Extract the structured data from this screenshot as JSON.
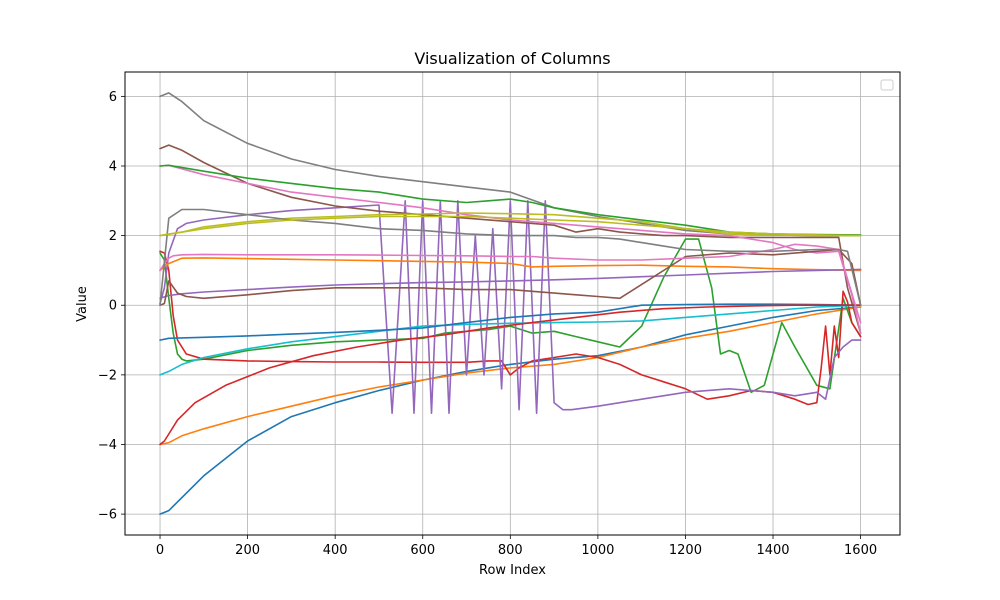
{
  "chart_data": {
    "type": "line",
    "title": "Visualization of Columns",
    "xlabel": "Row Index",
    "ylabel": "Value",
    "xlim": [
      -80,
      1690
    ],
    "ylim": [
      -6.6,
      6.7
    ],
    "xticks": [
      0,
      200,
      400,
      600,
      800,
      1000,
      1200,
      1400,
      1600
    ],
    "yticks": [
      -6,
      -4,
      -2,
      0,
      2,
      4,
      6
    ],
    "xtick_labels": [
      "0",
      "200",
      "400",
      "600",
      "800",
      "1000",
      "1200",
      "1400",
      "1600"
    ],
    "ytick_labels": [
      "−6",
      "−4",
      "−2",
      "0",
      "2",
      "4",
      "6"
    ],
    "grid": true,
    "legend": "top-right (empty)",
    "series": [
      {
        "color": "#1f77b4",
        "x": [
          0,
          20,
          100,
          200,
          300,
          400,
          500,
          600,
          700,
          800,
          900,
          1000,
          1100,
          1200,
          1300,
          1400,
          1500,
          1600
        ],
        "y": [
          -6.0,
          -5.9,
          -4.9,
          -3.9,
          -3.2,
          -2.8,
          -2.45,
          -2.15,
          -1.9,
          -1.7,
          -1.55,
          -1.45,
          -1.2,
          -0.85,
          -0.6,
          -0.35,
          -0.15,
          -0.05
        ]
      },
      {
        "color": "#ff7f0e",
        "x": [
          0,
          20,
          50,
          100,
          200,
          300,
          400,
          500,
          600,
          700,
          800,
          900,
          1000,
          1100,
          1200,
          1300,
          1400,
          1500,
          1600
        ],
        "y": [
          -4.0,
          -3.95,
          -3.75,
          -3.55,
          -3.2,
          -2.9,
          -2.6,
          -2.35,
          -2.15,
          -1.95,
          -1.8,
          -1.7,
          -1.5,
          -1.2,
          -0.95,
          -0.75,
          -0.5,
          -0.25,
          -0.05
        ]
      },
      {
        "color": "#2ca02c",
        "x": [
          0,
          10,
          20,
          30,
          40,
          50,
          60,
          100,
          200,
          300,
          400,
          500,
          600,
          650,
          700,
          750,
          800,
          850,
          900,
          950,
          1000,
          1050,
          1100,
          1150,
          1200,
          1230,
          1260,
          1280,
          1300,
          1320,
          1350,
          1380,
          1420,
          1450,
          1500,
          1530,
          1560,
          1580,
          1600
        ],
        "y": [
          1.5,
          1.3,
          0.2,
          -0.8,
          -1.4,
          -1.55,
          -1.6,
          -1.55,
          -1.3,
          -1.15,
          -1.05,
          -1.0,
          -0.95,
          -0.8,
          -0.75,
          -0.7,
          -0.6,
          -0.8,
          -0.75,
          -0.9,
          -1.05,
          -1.2,
          -0.6,
          0.8,
          1.9,
          1.9,
          0.5,
          -1.4,
          -1.3,
          -1.4,
          -2.5,
          -2.3,
          -0.5,
          -1.2,
          -2.3,
          -2.4,
          0.2,
          -0.5,
          -0.9
        ]
      },
      {
        "color": "#d62728",
        "x": [
          0,
          10,
          20,
          30,
          40,
          60,
          100,
          200,
          300,
          400,
          500,
          600,
          700,
          750,
          780,
          800,
          820,
          850,
          900,
          950,
          1000,
          1050,
          1100,
          1150,
          1200,
          1250,
          1300,
          1350,
          1400,
          1450,
          1480,
          1500,
          1510,
          1520,
          1530,
          1540,
          1550,
          1560,
          1570,
          1580,
          1600
        ],
        "y": [
          1.55,
          1.5,
          1.0,
          -0.3,
          -1.0,
          -1.4,
          -1.55,
          -1.6,
          -1.62,
          -1.63,
          -1.63,
          -1.64,
          -1.64,
          -1.6,
          -1.6,
          -2.0,
          -1.8,
          -1.6,
          -1.5,
          -1.4,
          -1.5,
          -1.7,
          -2.0,
          -2.2,
          -2.4,
          -2.7,
          -2.6,
          -2.45,
          -2.5,
          -2.7,
          -2.85,
          -2.8,
          -1.8,
          -0.6,
          -2.0,
          -0.6,
          -1.5,
          0.4,
          0.1,
          -0.5,
          -0.9
        ]
      },
      {
        "color": "#9467bd",
        "x": [
          0,
          10,
          20,
          40,
          60,
          100,
          200,
          300,
          400,
          500,
          530,
          560,
          580,
          600,
          620,
          640,
          660,
          680,
          700,
          720,
          740,
          760,
          780,
          800,
          820,
          840,
          860,
          880,
          900,
          920,
          940,
          1000,
          1100,
          1200,
          1300,
          1400,
          1450,
          1500,
          1520,
          1540,
          1560,
          1580,
          1600
        ],
        "y": [
          0.05,
          0.5,
          1.5,
          2.2,
          2.35,
          2.45,
          2.6,
          2.72,
          2.8,
          2.88,
          -3.1,
          3.0,
          -3.1,
          3.0,
          -3.1,
          3.0,
          -3.1,
          3.0,
          -2.0,
          2.0,
          -2.0,
          2.2,
          -2.4,
          3.0,
          -3.0,
          3.0,
          -3.1,
          3.0,
          -2.8,
          -3.0,
          -3.0,
          -2.9,
          -2.7,
          -2.5,
          -2.4,
          -2.5,
          -2.6,
          -2.5,
          -2.7,
          -1.5,
          -1.2,
          -1.0,
          -1.0
        ]
      },
      {
        "color": "#8c564b",
        "x": [
          0,
          20,
          50,
          100,
          150,
          200,
          300,
          400,
          500,
          600,
          700,
          800,
          900,
          950,
          1000,
          1050,
          1100,
          1150,
          1200,
          1300,
          1400,
          1500,
          1550,
          1570,
          1600
        ],
        "y": [
          4.5,
          4.6,
          4.45,
          4.1,
          3.8,
          3.5,
          3.1,
          2.85,
          2.7,
          2.6,
          2.5,
          2.4,
          2.3,
          2.1,
          2.2,
          2.1,
          2.05,
          2.0,
          2.0,
          1.95,
          1.95,
          1.95,
          1.95,
          0.5,
          -0.8
        ]
      },
      {
        "color": "#e377c2",
        "x": [
          0,
          20,
          100,
          200,
          300,
          400,
          500,
          600,
          700,
          800,
          900,
          1000,
          1100,
          1200,
          1300,
          1350,
          1400,
          1450,
          1500,
          1550,
          1580,
          1600
        ],
        "y": [
          4.0,
          4.02,
          3.75,
          3.5,
          3.25,
          3.1,
          2.95,
          2.8,
          2.6,
          2.45,
          2.35,
          2.25,
          2.15,
          2.05,
          2.0,
          1.9,
          1.8,
          1.6,
          1.5,
          1.55,
          0.3,
          -0.8
        ]
      },
      {
        "color": "#7f7f7f",
        "x": [
          0,
          20,
          50,
          100,
          200,
          300,
          400,
          500,
          600,
          700,
          800,
          900,
          1000,
          1100,
          1200,
          1300,
          1400,
          1500,
          1600
        ],
        "y": [
          6.0,
          6.1,
          5.85,
          5.3,
          4.65,
          4.2,
          3.9,
          3.7,
          3.55,
          3.4,
          3.25,
          2.8,
          2.55,
          2.35,
          2.15,
          2.05,
          2.02,
          2.0,
          2.0
        ]
      },
      {
        "color": "#bcbd22",
        "x": [
          0,
          50,
          100,
          200,
          300,
          400,
          500,
          600,
          700,
          800,
          900,
          1000,
          1100,
          1200,
          1300,
          1400,
          1500,
          1600
        ],
        "y": [
          2.0,
          2.1,
          2.25,
          2.4,
          2.5,
          2.55,
          2.6,
          2.62,
          2.65,
          2.63,
          2.6,
          2.5,
          2.4,
          2.2,
          2.05,
          2.02,
          2.0,
          2.0
        ]
      },
      {
        "color": "#17becf",
        "x": [
          0,
          20,
          50,
          100,
          200,
          300,
          400,
          500,
          600,
          700,
          800,
          900,
          1000,
          1100,
          1200,
          1300,
          1400,
          1500,
          1600
        ],
        "y": [
          -2.0,
          -1.9,
          -1.7,
          -1.5,
          -1.25,
          -1.05,
          -0.9,
          -0.75,
          -0.6,
          -0.55,
          -0.52,
          -0.5,
          -0.48,
          -0.45,
          -0.35,
          -0.25,
          -0.15,
          -0.05,
          0.0
        ]
      },
      {
        "color": "#1f77b4",
        "x": [
          0,
          20,
          100,
          200,
          300,
          400,
          500,
          600,
          700,
          800,
          900,
          1000,
          1100,
          1200,
          1300,
          1400,
          1500,
          1600
        ],
        "y": [
          -1.0,
          -0.95,
          -0.92,
          -0.88,
          -0.83,
          -0.78,
          -0.72,
          -0.65,
          -0.5,
          -0.35,
          -0.25,
          -0.2,
          0.0,
          0.02,
          0.03,
          0.03,
          0.02,
          0.0
        ]
      },
      {
        "color": "#ff7f0e",
        "x": [
          0,
          20,
          50,
          100,
          200,
          300,
          400,
          500,
          600,
          700,
          800,
          850,
          900,
          1000,
          1100,
          1200,
          1300,
          1400,
          1500,
          1600
        ],
        "y": [
          1.0,
          1.2,
          1.35,
          1.36,
          1.34,
          1.32,
          1.3,
          1.28,
          1.26,
          1.24,
          1.2,
          1.1,
          1.12,
          1.14,
          1.15,
          1.12,
          1.1,
          1.05,
          1.02,
          1.0
        ]
      },
      {
        "color": "#2ca02c",
        "x": [
          0,
          20,
          100,
          200,
          300,
          400,
          500,
          550,
          600,
          700,
          750,
          800,
          850,
          900,
          1000,
          1100,
          1200,
          1300,
          1400,
          1500,
          1600
        ],
        "y": [
          4.0,
          4.02,
          3.85,
          3.65,
          3.5,
          3.35,
          3.25,
          3.15,
          3.05,
          2.95,
          3.0,
          3.05,
          2.95,
          2.8,
          2.6,
          2.45,
          2.3,
          2.1,
          2.05,
          2.03,
          2.02
        ]
      },
      {
        "color": "#d62728",
        "x": [
          0,
          10,
          20,
          40,
          80,
          150,
          250,
          350,
          450,
          550,
          650,
          750,
          850,
          950,
          1050,
          1150,
          1250,
          1350,
          1450,
          1550,
          1600
        ],
        "y": [
          -4.0,
          -3.9,
          -3.7,
          -3.3,
          -2.8,
          -2.3,
          -1.8,
          -1.45,
          -1.2,
          -1.0,
          -0.85,
          -0.65,
          -0.5,
          -0.35,
          -0.2,
          -0.1,
          -0.05,
          -0.02,
          0.0,
          0.0,
          0.0
        ]
      },
      {
        "color": "#9467bd",
        "x": [
          0,
          20,
          50,
          100,
          200,
          300,
          400,
          500,
          600,
          700,
          800,
          900,
          1000,
          1100,
          1200,
          1300,
          1400,
          1500,
          1600
        ],
        "y": [
          0.2,
          0.28,
          0.33,
          0.38,
          0.45,
          0.52,
          0.58,
          0.62,
          0.65,
          0.67,
          0.7,
          0.73,
          0.77,
          0.82,
          0.87,
          0.92,
          0.97,
          1.0,
          1.03
        ]
      },
      {
        "color": "#8c564b",
        "x": [
          0,
          10,
          20,
          40,
          60,
          100,
          200,
          300,
          400,
          500,
          600,
          700,
          800,
          900,
          950,
          1000,
          1050,
          1100,
          1200,
          1300,
          1400,
          1500,
          1550,
          1580,
          1600
        ],
        "y": [
          0.0,
          0.05,
          0.7,
          0.35,
          0.25,
          0.2,
          0.3,
          0.42,
          0.5,
          0.5,
          0.5,
          0.45,
          0.45,
          0.35,
          0.3,
          0.25,
          0.2,
          0.6,
          1.4,
          1.5,
          1.45,
          1.55,
          1.6,
          1.2,
          0.0
        ]
      },
      {
        "color": "#e377c2",
        "x": [
          0,
          10,
          20,
          30,
          50,
          100,
          200,
          300,
          400,
          500,
          600,
          700,
          800,
          850,
          900,
          1000,
          1100,
          1200,
          1300,
          1400,
          1450,
          1500,
          1550,
          1600
        ],
        "y": [
          1.0,
          1.2,
          1.35,
          1.42,
          1.45,
          1.46,
          1.45,
          1.45,
          1.45,
          1.44,
          1.43,
          1.42,
          1.4,
          1.4,
          1.35,
          1.3,
          1.3,
          1.35,
          1.4,
          1.6,
          1.75,
          1.7,
          1.6,
          -0.5
        ]
      },
      {
        "color": "#7f7f7f",
        "x": [
          0,
          20,
          50,
          100,
          200,
          300,
          400,
          500,
          600,
          700,
          800,
          900,
          950,
          1000,
          1050,
          1100,
          1150,
          1200,
          1300,
          1400,
          1500,
          1550,
          1570,
          1600
        ],
        "y": [
          0.0,
          2.5,
          2.75,
          2.75,
          2.6,
          2.45,
          2.35,
          2.2,
          2.15,
          2.05,
          2.0,
          2.0,
          1.95,
          1.95,
          1.9,
          1.8,
          1.7,
          1.6,
          1.55,
          1.55,
          1.6,
          1.6,
          1.55,
          0.0
        ]
      },
      {
        "color": "#bcbd22",
        "x": [
          0,
          100,
          200,
          300,
          400,
          500,
          600,
          700,
          800,
          900,
          1000,
          1100,
          1200,
          1300,
          1400,
          1500,
          1600
        ],
        "y": [
          2.0,
          2.2,
          2.35,
          2.45,
          2.5,
          2.55,
          2.55,
          2.55,
          2.5,
          2.45,
          2.4,
          2.3,
          2.2,
          2.1,
          2.05,
          2.02,
          2.0
        ]
      }
    ]
  }
}
